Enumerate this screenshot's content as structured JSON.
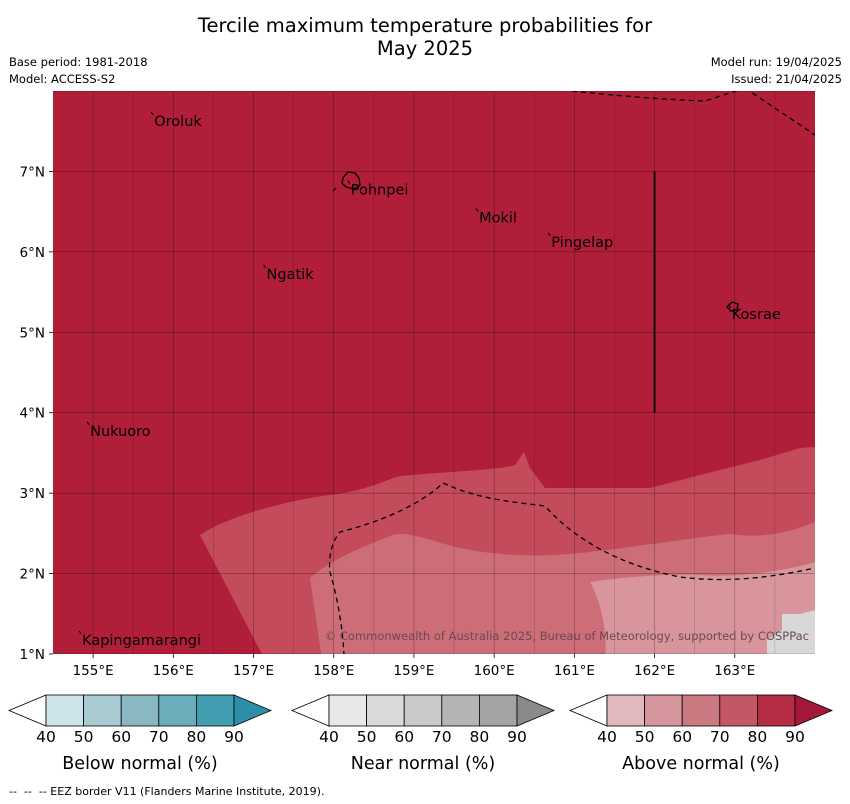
{
  "header": {
    "title_line1": "Tercile maximum temperature probabilities for",
    "title_line2": "May 2025",
    "base_period": "Base period: 1981-2018",
    "model": "Model: ACCESS-S2",
    "model_run": "Model run: 19/04/2025",
    "issued": "Issued: 21/04/2025"
  },
  "map": {
    "lon_labels": [
      "155°E",
      "156°E",
      "157°E",
      "158°E",
      "159°E",
      "160°E",
      "161°E",
      "162°E",
      "163°E"
    ],
    "lat_labels": [
      "7°N",
      "6°N",
      "5°N",
      "4°N",
      "3°N",
      "2°N",
      "1°N"
    ],
    "places": [
      {
        "name": "Oroluk",
        "lon": 155.75,
        "lat": 7.7
      },
      {
        "name": "Pohnpei",
        "lon": 158.2,
        "lat": 6.85
      },
      {
        "name": "Ngatik",
        "lon": 157.15,
        "lat": 5.8
      },
      {
        "name": "Mokil",
        "lon": 159.8,
        "lat": 6.5
      },
      {
        "name": "Pingelap",
        "lon": 160.7,
        "lat": 6.2
      },
      {
        "name": "Kosrae",
        "lon": 162.95,
        "lat": 5.3
      },
      {
        "name": "Nukuoro",
        "lon": 154.95,
        "lat": 3.85
      },
      {
        "name": "Kapingamarangi",
        "lon": 154.85,
        "lat": 1.25
      }
    ],
    "copyright": "© Commonwealth of Australia 2025, Bureau of Meteorology, supported by COSPPac",
    "colors": {
      "above_80": "#b01e3a",
      "above_70": "#c44b5b",
      "above_60": "#cd6d78",
      "above_50": "#d9959c",
      "no_data": "#d8d8d8",
      "grid": "#000000",
      "border": "#000000"
    }
  },
  "legend": {
    "tick_labels": [
      "40",
      "50",
      "60",
      "70",
      "80",
      "90"
    ],
    "below": {
      "label": "Below normal (%)",
      "colors": [
        "#ffffff",
        "#cbe3e9",
        "#a7cbd1",
        "#8ab8c2",
        "#6aaebc",
        "#439db1",
        "#2c8ea7"
      ]
    },
    "near": {
      "label": "Near normal (%)",
      "colors": [
        "#ffffff",
        "#e8e8e8",
        "#d9d9d9",
        "#c9c9c9",
        "#b4b4b4",
        "#a3a3a3",
        "#8a8a8a"
      ]
    },
    "above": {
      "label": "Above normal (%)",
      "colors": [
        "#ffffff",
        "#e1b8be",
        "#d5959c",
        "#cb7880",
        "#c45767",
        "#b52d45",
        "#a5183a"
      ]
    }
  },
  "footer": "--  --  -- EEZ border V11 (Flanders Marine Institute, 2019)."
}
